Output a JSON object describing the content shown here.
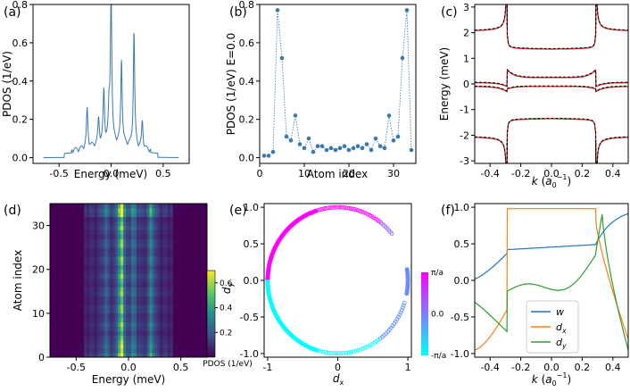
{
  "chart_data": [
    {
      "panel": "(a)",
      "type": "line",
      "xlabel": "Energy (meV)",
      "ylabel": "PDOS (1/eV)",
      "xlim": [
        -0.75,
        0.75
      ],
      "ylim": [
        -0.03,
        0.8
      ],
      "xticks": [
        "-0.5",
        "0.0",
        "0.5"
      ],
      "yticks": [
        "0.0",
        "0.2",
        "0.4",
        "0.6",
        "0.8"
      ],
      "peaks": [
        {
          "x": -0.23,
          "y": 0.2
        },
        {
          "x": -0.12,
          "y": 0.13
        },
        {
          "x": -0.07,
          "y": 0.27
        },
        {
          "x": -0.02,
          "y": 0.16
        },
        {
          "x": 0.0,
          "y": 0.77
        },
        {
          "x": 0.1,
          "y": 0.44
        },
        {
          "x": 0.22,
          "y": 0.6
        },
        {
          "x": 0.3,
          "y": 0.14
        }
      ],
      "color": "#3b78b0"
    },
    {
      "panel": "(b)",
      "type": "scatter",
      "xlabel": "Atom index",
      "ylabel": "PDOS (1/eV) E=0.0",
      "xlim": [
        0,
        35
      ],
      "ylim": [
        -0.03,
        0.8
      ],
      "xticks": [
        "0",
        "10",
        "20",
        "30"
      ],
      "yticks": [
        "0.0",
        "0.2",
        "0.4",
        "0.6",
        "0.8"
      ],
      "x": [
        1,
        2,
        3,
        4,
        5,
        6,
        7,
        8,
        9,
        10,
        11,
        12,
        13,
        14,
        15,
        16,
        17,
        18,
        19,
        20,
        21,
        22,
        23,
        24,
        25,
        26,
        27,
        28,
        29,
        30,
        31,
        32,
        33,
        34
      ],
      "y": [
        0.01,
        0.01,
        0.03,
        0.77,
        0.52,
        0.11,
        0.09,
        0.22,
        0.07,
        0.05,
        0.1,
        0.03,
        0.06,
        0.06,
        0.04,
        0.05,
        0.04,
        0.05,
        0.06,
        0.04,
        0.05,
        0.06,
        0.05,
        0.07,
        0.04,
        0.1,
        0.06,
        0.05,
        0.22,
        0.09,
        0.11,
        0.52,
        0.77,
        0.04
      ],
      "color": "#3b78b0"
    },
    {
      "panel": "(c)",
      "type": "line",
      "xlabel": "k (a0^-1)",
      "ylabel": "Energy (meV)",
      "xlim": [
        -0.5,
        0.5
      ],
      "ylim": [
        -3.1,
        3.1
      ],
      "xticks": [
        "-0.4",
        "-0.2",
        "0.0",
        "0.2",
        "0.4"
      ],
      "yticks": [
        "-3",
        "-2",
        "-1",
        "0",
        "1",
        "2",
        "3"
      ],
      "band_levels": [
        2.05,
        1.35,
        0.25,
        -0.1,
        -1.35,
        -2.05
      ],
      "series": [
        {
          "style": "red solid",
          "color": "#d62728"
        },
        {
          "style": "black dashed",
          "color": "#000000"
        }
      ]
    },
    {
      "panel": "(d)",
      "type": "heatmap",
      "xlabel": "Energy (meV)",
      "ylabel": "Atom index",
      "xlim": [
        -0.75,
        0.75
      ],
      "ylim": [
        0,
        35
      ],
      "xticks": [
        "-0.5",
        "0.0",
        "0.5"
      ],
      "yticks": [
        "0",
        "10",
        "20",
        "30"
      ],
      "colorbar": {
        "label": "d_y",
        "sublabel": "PDOS (1/eV)",
        "ticks": [
          "0.2",
          "0.4",
          "0.6"
        ],
        "range": [
          0.0,
          0.7
        ]
      },
      "bright_columns": [
        {
          "x": -0.07,
          "v": 0.62
        },
        {
          "x": 0.05,
          "v": 0.22
        },
        {
          "x": 0.22,
          "v": 0.3
        },
        {
          "x": -0.22,
          "v": 0.18
        }
      ]
    },
    {
      "panel": "(e)",
      "type": "scatter",
      "xlabel": "d_x",
      "ylabel": "",
      "xlim": [
        -1.05,
        1.05
      ],
      "ylim": [
        -1.05,
        1.05
      ],
      "xticks": [
        "-1",
        "0",
        "1"
      ],
      "yticks": [
        "-1.0",
        "-0.5",
        "0.0",
        "0.5",
        "1.0"
      ],
      "description_points": "unit circle of points colored by phase",
      "colorbar": {
        "ticks": [
          "π/a",
          "0.0",
          "-π/a"
        ],
        "colors": [
          "#ff00ff",
          "#00ffff"
        ]
      }
    },
    {
      "panel": "(f)",
      "type": "line",
      "xlabel": "k (a0^-1)",
      "ylabel": "",
      "xlim": [
        -0.5,
        0.5
      ],
      "ylim": [
        -1.05,
        1.05
      ],
      "xticks": [
        "-0.4",
        "-0.2",
        "0.0",
        "0.2",
        "0.4"
      ],
      "yticks": [
        "-1.0",
        "-0.5",
        "0.0",
        "0.5",
        "1.0"
      ],
      "series": [
        {
          "name": "w",
          "color": "#1f77b4"
        },
        {
          "name": "d_x",
          "color": "#ff7f0e"
        },
        {
          "name": "d_y",
          "color": "#2ca02c"
        }
      ]
    }
  ],
  "labels": {
    "a": "(a)",
    "b": "(b)",
    "c": "(c)",
    "d": "(d)",
    "e": "(e)",
    "f": "(f)",
    "a_x": "Energy (meV)",
    "a_y": "PDOS (1/eV)",
    "b_x": "Atom index",
    "b_y": "PDOS (1/eV) E=0.0",
    "c_y": "Energy (meV)",
    "d_x": "Energy (meV)",
    "d_y": "Atom index",
    "d_cb_sub": "PDOS (1/eV)",
    "leg_w": "w"
  }
}
